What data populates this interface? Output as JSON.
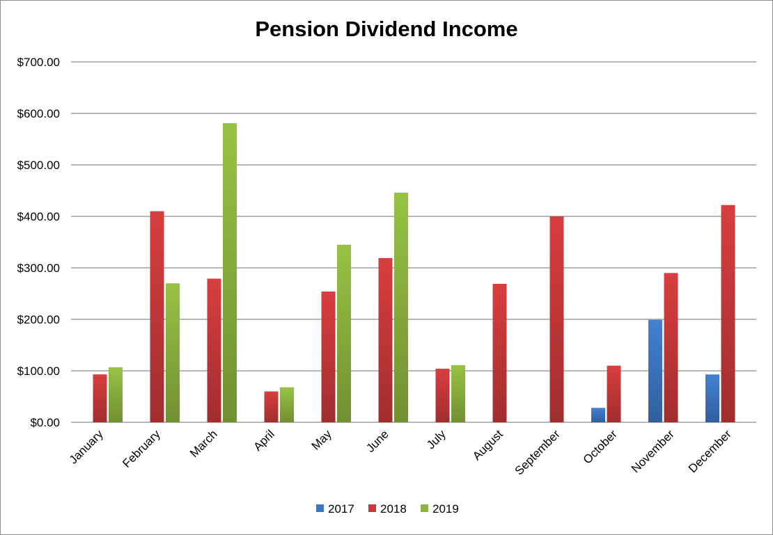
{
  "chart_data": {
    "type": "bar",
    "title": "Pension Dividend Income",
    "xlabel": "",
    "ylabel": "",
    "ylim": [
      0,
      700
    ],
    "yticks": [
      0,
      100,
      200,
      300,
      400,
      500,
      600,
      700
    ],
    "ytick_labels": [
      "$0.00",
      "$100.00",
      "$200.00",
      "$300.00",
      "$400.00",
      "$500.00",
      "$600.00",
      "$700.00"
    ],
    "grid": true,
    "legend_position": "bottom",
    "categories": [
      "January",
      "February",
      "March",
      "April",
      "May",
      "June",
      "July",
      "August",
      "September",
      "October",
      "November",
      "December"
    ],
    "series": [
      {
        "name": "2017",
        "color": "#3d77c4",
        "values": [
          null,
          null,
          null,
          null,
          null,
          null,
          null,
          null,
          null,
          28,
          199,
          93
        ]
      },
      {
        "name": "2018",
        "color": "#c8393a",
        "values": [
          93,
          410,
          279,
          60,
          254,
          319,
          104,
          269,
          400,
          110,
          290,
          422
        ]
      },
      {
        "name": "2019",
        "color": "#8db43f",
        "values": [
          107,
          270,
          581,
          68,
          345,
          446,
          111,
          null,
          null,
          null,
          null,
          null
        ]
      }
    ]
  }
}
